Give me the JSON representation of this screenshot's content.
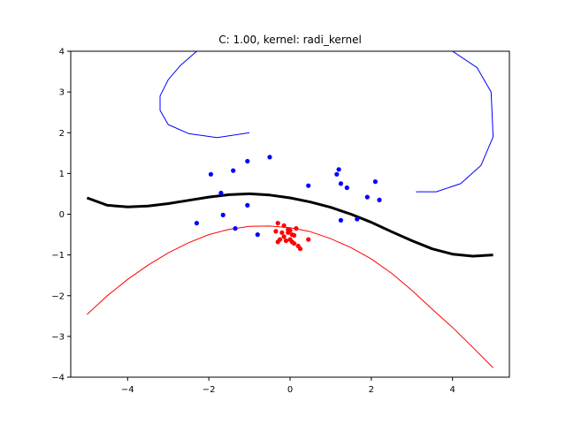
{
  "chart_data": {
    "type": "scatter",
    "title": "C: 1.00, kernel: radi_kernel",
    "xlabel": "",
    "ylabel": "",
    "xlim": [
      -5.4,
      5.4
    ],
    "ylim": [
      -4,
      4
    ],
    "xticks": [
      -4,
      -2,
      0,
      2,
      4
    ],
    "yticks": [
      -4,
      -3,
      -2,
      -1,
      0,
      1,
      2,
      3,
      4
    ],
    "xtick_labels": [
      "−4",
      "−2",
      "0",
      "2",
      "4"
    ],
    "ytick_labels": [
      "−4",
      "−3",
      "−2",
      "−1",
      "0",
      "1",
      "2",
      "3",
      "4"
    ],
    "grid": false,
    "colors": {
      "class_a": "#0000ff",
      "class_b": "#ff0000",
      "boundary": "#000000"
    },
    "series": [
      {
        "color": "#0000ff",
        "kind": "points",
        "x": [
          -1.95,
          -1.4,
          -1.05,
          -0.5,
          -1.7,
          -1.65,
          -1.05,
          -2.3,
          -1.35,
          -0.8,
          0.45,
          1.2,
          1.15,
          1.25,
          1.4,
          2.1,
          1.9,
          2.2,
          1.25,
          1.65
        ],
        "y": [
          0.98,
          1.07,
          1.3,
          1.4,
          0.52,
          -0.02,
          0.22,
          -0.22,
          -0.35,
          -0.5,
          0.7,
          1.1,
          0.98,
          0.75,
          0.65,
          0.8,
          0.42,
          0.35,
          -0.15,
          -0.12
        ]
      },
      {
        "color": "#ff0000",
        "kind": "points",
        "x": [
          -0.3,
          -0.15,
          -0.35,
          -0.2,
          -0.05,
          0.05,
          0.15,
          -0.25,
          -0.1,
          0.0,
          0.05,
          -0.15,
          0.1,
          0.2,
          0.25,
          -0.3,
          0.45,
          -0.05,
          0.0,
          0.1
        ],
        "y": [
          -0.22,
          -0.28,
          -0.42,
          -0.45,
          -0.38,
          -0.5,
          -0.35,
          -0.62,
          -0.65,
          -0.62,
          -0.68,
          -0.55,
          -0.72,
          -0.78,
          -0.85,
          -0.68,
          -0.62,
          -0.45,
          -0.4,
          -0.52
        ]
      },
      {
        "color": "#000000",
        "kind": "line",
        "x": [
          -5.0,
          -4.5,
          -4.0,
          -3.5,
          -3.0,
          -2.5,
          -2.0,
          -1.5,
          -1.0,
          -0.5,
          0.0,
          0.5,
          1.0,
          1.5,
          2.0,
          2.5,
          3.0,
          3.5,
          4.0,
          4.5,
          5.0
        ],
        "y": [
          0.4,
          0.22,
          0.18,
          0.2,
          0.26,
          0.34,
          0.42,
          0.48,
          0.5,
          0.47,
          0.4,
          0.3,
          0.17,
          0.0,
          -0.2,
          -0.43,
          -0.65,
          -0.85,
          -0.98,
          -1.03,
          -1.0
        ]
      },
      {
        "color": "#0000ff",
        "kind": "line",
        "x": [
          -1.0,
          -1.8,
          -2.5,
          -3.0,
          -3.2,
          -3.2,
          -3.0,
          -2.7,
          -2.3,
          -1.8,
          -1.2,
          -0.5,
          0.3,
          1.0,
          1.5,
          2.0,
          2.5,
          3.0,
          3.5,
          4.0,
          4.6,
          4.95,
          5.0,
          4.7,
          4.2,
          3.6,
          3.1
        ],
        "y": [
          2.0,
          1.88,
          1.98,
          2.2,
          2.55,
          2.9,
          3.3,
          3.65,
          4.0,
          4.0,
          4.0,
          4.0,
          4.0,
          4.0,
          4.0,
          4.0,
          4.0,
          4.0,
          4.0,
          4.0,
          3.6,
          3.0,
          1.9,
          1.2,
          0.75,
          0.55,
          0.55
        ]
      },
      {
        "color": "#ff0000",
        "kind": "line",
        "x": [
          -5.0,
          -4.5,
          -4.0,
          -3.5,
          -3.0,
          -2.5,
          -2.0,
          -1.5,
          -1.0,
          -0.5,
          0.0,
          0.5,
          1.0,
          1.5,
          2.0,
          2.5,
          3.0,
          3.5,
          4.0,
          4.5,
          5.0
        ],
        "y": [
          -2.46,
          -2.0,
          -1.6,
          -1.25,
          -0.95,
          -0.7,
          -0.5,
          -0.37,
          -0.3,
          -0.29,
          -0.33,
          -0.43,
          -0.6,
          -0.82,
          -1.1,
          -1.45,
          -1.87,
          -2.33,
          -2.78,
          -3.27,
          -3.77
        ]
      }
    ]
  }
}
